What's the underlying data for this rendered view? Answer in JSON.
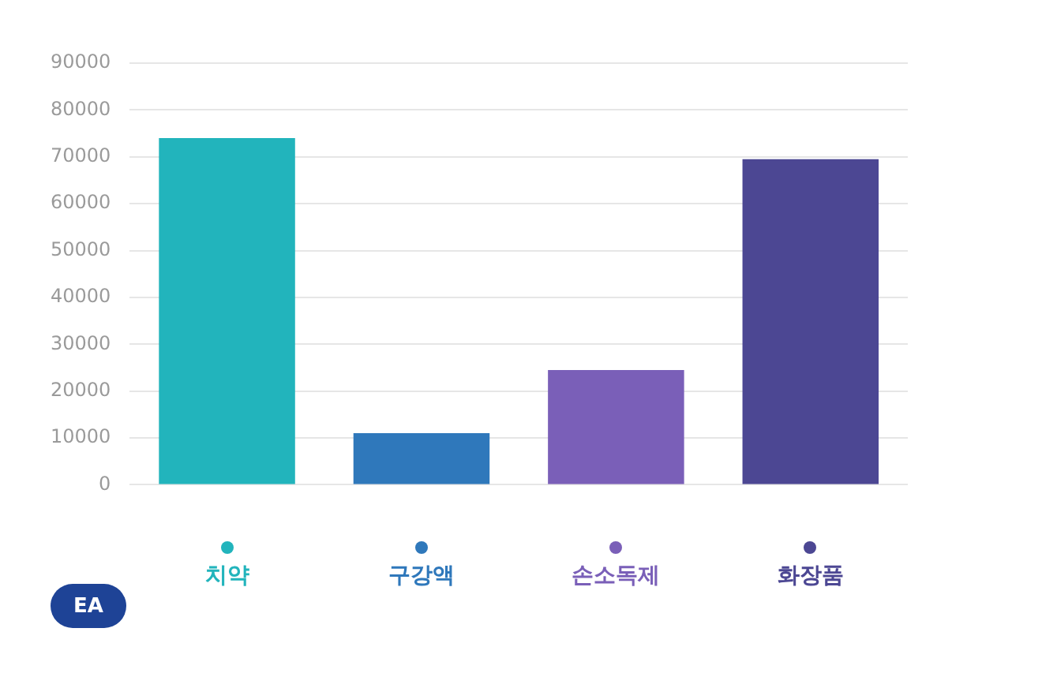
{
  "chart_data": {
    "type": "bar",
    "ylabel": "EA",
    "categories": [
      "치약",
      "구강액",
      "손소독제",
      "화장품"
    ],
    "values": [
      74000,
      11000,
      24500,
      69500
    ],
    "colors": [
      "#22b4bc",
      "#2f78bb",
      "#7a5fb8",
      "#4c4793"
    ],
    "ylim": [
      0,
      90000
    ],
    "yticks": [
      0,
      10000,
      20000,
      30000,
      40000,
      50000,
      60000,
      70000,
      80000,
      90000
    ],
    "grid": "y"
  }
}
